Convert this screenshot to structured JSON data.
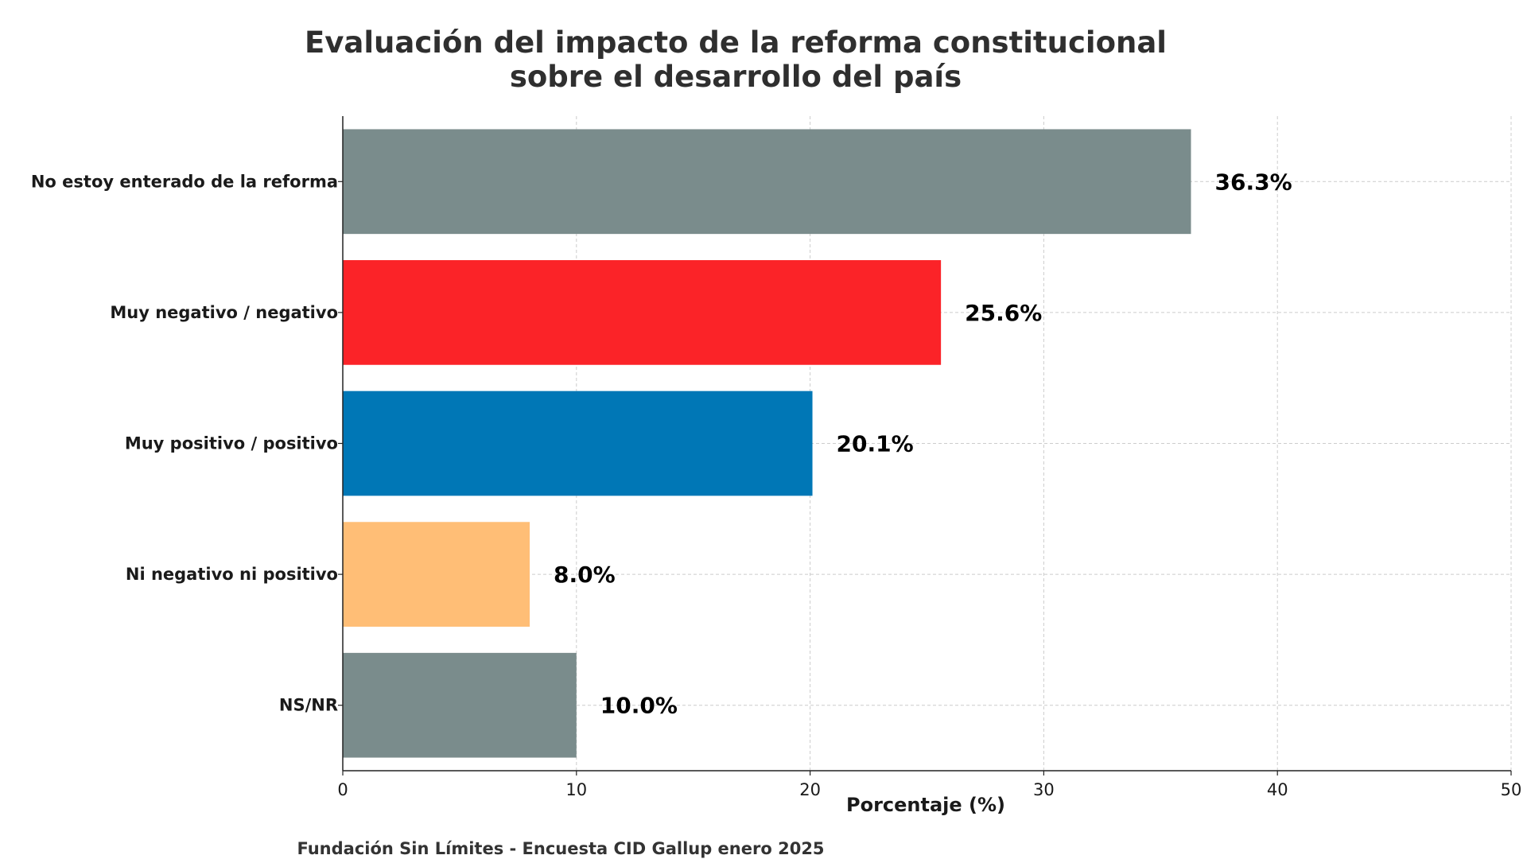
{
  "chart_data": {
    "type": "bar",
    "orientation": "horizontal",
    "title_lines": [
      "Evaluación del impacto de la reforma constitucional",
      "sobre el desarrollo del país"
    ],
    "categories": [
      "No estoy enterado de la reforma",
      "Muy negativo / negativo",
      "Muy positivo / positivo",
      "Ni negativo ni positivo",
      "NS/NR"
    ],
    "values": [
      36.3,
      25.6,
      20.1,
      8.0,
      10.0
    ],
    "value_labels": [
      "36.3%",
      "25.6%",
      "20.1%",
      "8.0%",
      "10.0%"
    ],
    "colors": [
      "#7a8c8c",
      "#fb2328",
      "#0077b6",
      "#ffbe76",
      "#7a8c8c"
    ],
    "xlabel": "Porcentaje (%)",
    "xlim": [
      0,
      50
    ],
    "xticks": [
      0,
      10,
      20,
      30,
      40,
      50
    ],
    "grid": true,
    "source": "Fundación Sin Límites - Encuesta CID Gallup enero 2025"
  }
}
